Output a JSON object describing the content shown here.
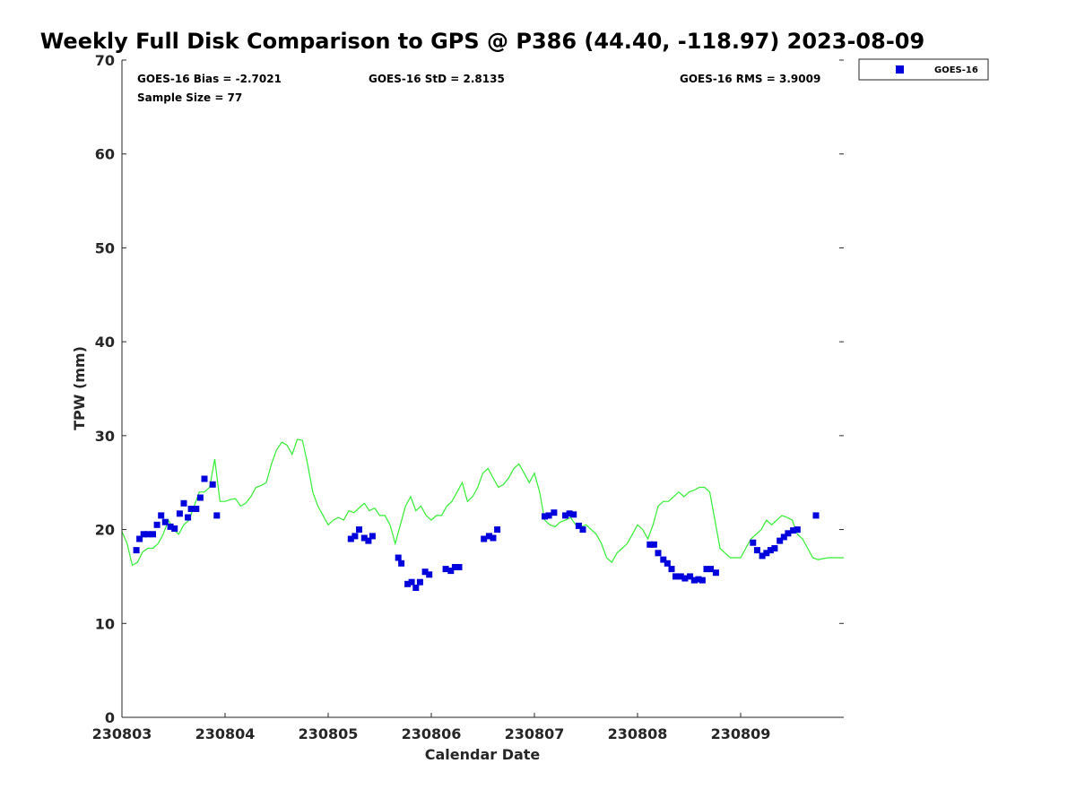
{
  "chart_data": {
    "type": "scatter",
    "title": "Weekly Full Disk Comparison to GPS @ P386 (44.40, -118.97) 2023-08-09",
    "xlabel": "Calendar Date",
    "ylabel": "TPW (mm)",
    "xlim": [
      0,
      7
    ],
    "ylim": [
      0,
      70
    ],
    "x_ticks": [
      0,
      1,
      2,
      3,
      4,
      5,
      6
    ],
    "x_tick_labels": [
      "230803",
      "230804",
      "230805",
      "230806",
      "230807",
      "230808",
      "230809"
    ],
    "y_ticks": [
      0,
      10,
      20,
      30,
      40,
      50,
      60,
      70
    ],
    "y_tick_labels": [
      "0",
      "10",
      "20",
      "30",
      "40",
      "50",
      "60",
      "70"
    ],
    "grid": false,
    "legend_position": "top-right-outside",
    "stats": {
      "bias": "GOES-16 Bias = -2.7021",
      "std": "GOES-16 StD = 2.8135",
      "rms": "GOES-16 RMS = 3.9009",
      "sample": "Sample Size = 77"
    },
    "series": [
      {
        "name": "GOES-16",
        "kind": "scatter",
        "color": "#0000dd",
        "marker": "square",
        "x": [
          0.14,
          0.17,
          0.21,
          0.25,
          0.3,
          0.34,
          0.38,
          0.42,
          0.47,
          0.51,
          0.56,
          0.6,
          0.64,
          0.67,
          0.72,
          0.76,
          0.8,
          0.88,
          0.92,
          2.22,
          2.26,
          2.3,
          2.35,
          2.39,
          2.43,
          2.68,
          2.71,
          2.77,
          2.81,
          2.85,
          2.89,
          2.94,
          2.98,
          3.14,
          3.19,
          3.23,
          3.27,
          3.51,
          3.56,
          3.6,
          3.64,
          4.1,
          4.14,
          4.19,
          4.3,
          4.34,
          4.38,
          4.43,
          4.47,
          5.12,
          5.16,
          5.2,
          5.25,
          5.29,
          5.33,
          5.37,
          5.42,
          5.46,
          5.51,
          5.55,
          5.59,
          5.63,
          5.67,
          5.71,
          5.76,
          6.12,
          6.16,
          6.21,
          6.25,
          6.29,
          6.33,
          6.38,
          6.42,
          6.46,
          6.51,
          6.55,
          6.73
        ],
        "y": [
          17.8,
          19.0,
          19.5,
          19.5,
          19.5,
          20.5,
          21.5,
          20.8,
          20.3,
          20.1,
          21.7,
          22.8,
          21.3,
          22.2,
          22.2,
          23.4,
          25.4,
          24.8,
          21.5,
          19.0,
          19.3,
          20.0,
          19.1,
          18.8,
          19.3,
          17.0,
          16.4,
          14.2,
          14.4,
          13.8,
          14.4,
          15.5,
          15.2,
          15.8,
          15.6,
          16.0,
          16.0,
          19.0,
          19.3,
          19.1,
          20.0,
          21.4,
          21.5,
          21.8,
          21.5,
          21.7,
          21.6,
          20.4,
          20.0,
          18.4,
          18.4,
          17.5,
          16.8,
          16.4,
          15.8,
          15.0,
          15.0,
          14.8,
          15.0,
          14.6,
          14.7,
          14.6,
          15.8,
          15.8,
          15.4,
          18.6,
          17.8,
          17.2,
          17.5,
          17.8,
          18.0,
          18.8,
          19.2,
          19.6,
          19.9,
          20.0,
          21.5
        ]
      },
      {
        "name": "GPS",
        "kind": "line",
        "color": "#33ee33",
        "x": [
          0.0,
          0.05,
          0.1,
          0.15,
          0.2,
          0.25,
          0.3,
          0.35,
          0.4,
          0.45,
          0.5,
          0.55,
          0.6,
          0.65,
          0.7,
          0.75,
          0.8,
          0.85,
          0.9,
          0.95,
          1.0,
          1.05,
          1.1,
          1.15,
          1.2,
          1.25,
          1.3,
          1.35,
          1.4,
          1.45,
          1.5,
          1.55,
          1.6,
          1.65,
          1.7,
          1.75,
          1.8,
          1.85,
          1.9,
          1.95,
          2.0,
          2.05,
          2.1,
          2.15,
          2.2,
          2.25,
          2.3,
          2.35,
          2.4,
          2.45,
          2.5,
          2.55,
          2.6,
          2.65,
          2.7,
          2.75,
          2.8,
          2.85,
          2.9,
          2.95,
          3.0,
          3.05,
          3.1,
          3.15,
          3.2,
          3.25,
          3.3,
          3.35,
          3.4,
          3.45,
          3.5,
          3.55,
          3.6,
          3.65,
          3.7,
          3.75,
          3.8,
          3.85,
          3.9,
          3.95,
          4.0,
          4.05,
          4.1,
          4.15,
          4.2,
          4.25,
          4.3,
          4.35,
          4.4,
          4.45,
          4.5,
          4.55,
          4.6,
          4.65,
          4.7,
          4.75,
          4.8,
          4.85,
          4.9,
          4.95,
          5.0,
          5.05,
          5.1,
          5.15,
          5.2,
          5.25,
          5.3,
          5.35,
          5.4,
          5.45,
          5.5,
          5.55,
          5.6,
          5.65,
          5.7,
          5.75,
          5.8,
          5.85,
          5.9,
          5.95,
          6.0,
          6.05,
          6.1,
          6.15,
          6.2,
          6.25,
          6.3,
          6.35,
          6.4,
          6.45,
          6.5,
          6.55,
          6.6,
          6.65,
          6.7,
          6.75,
          6.8,
          6.85,
          6.9,
          6.95,
          7.0
        ],
        "y": [
          19.8,
          18.5,
          16.2,
          16.5,
          17.6,
          18.0,
          18.0,
          18.5,
          19.5,
          21.0,
          20.0,
          19.5,
          20.5,
          21.0,
          22.5,
          24.0,
          24.0,
          24.5,
          27.5,
          23.0,
          23.0,
          23.2,
          23.3,
          22.5,
          22.8,
          23.5,
          24.5,
          24.7,
          25.0,
          27.0,
          28.5,
          29.3,
          29.0,
          28.0,
          29.6,
          29.5,
          27.0,
          24.0,
          22.5,
          21.5,
          20.5,
          21.0,
          21.3,
          21.0,
          22.0,
          21.8,
          22.3,
          22.8,
          22.0,
          22.3,
          21.5,
          21.5,
          20.5,
          18.5,
          20.5,
          22.5,
          23.5,
          22.0,
          22.5,
          21.5,
          21.0,
          21.5,
          21.5,
          22.5,
          23.0,
          24.0,
          25.0,
          23.0,
          23.5,
          24.5,
          26.0,
          26.5,
          25.5,
          24.5,
          24.8,
          25.5,
          26.5,
          27.0,
          26.0,
          25.0,
          26.0,
          24.0,
          21.0,
          20.5,
          20.3,
          20.8,
          21.0,
          21.3,
          20.5,
          20.3,
          20.5,
          20.0,
          19.5,
          18.5,
          17.0,
          16.5,
          17.5,
          18.0,
          18.5,
          19.5,
          20.5,
          20.0,
          19.0,
          20.5,
          22.5,
          23.0,
          23.0,
          23.5,
          24.0,
          23.5,
          24.0,
          24.2,
          24.5,
          24.5,
          24.0,
          21.0,
          18.0,
          17.5,
          17.0,
          17.0,
          17.0,
          18.0,
          19.0,
          19.5,
          20.0,
          21.0,
          20.5,
          21.0,
          21.5,
          21.3,
          21.0,
          19.5,
          19.0,
          18.0,
          17.0,
          16.8,
          16.9,
          17.0,
          17.0,
          17.0,
          17.0
        ]
      }
    ]
  }
}
